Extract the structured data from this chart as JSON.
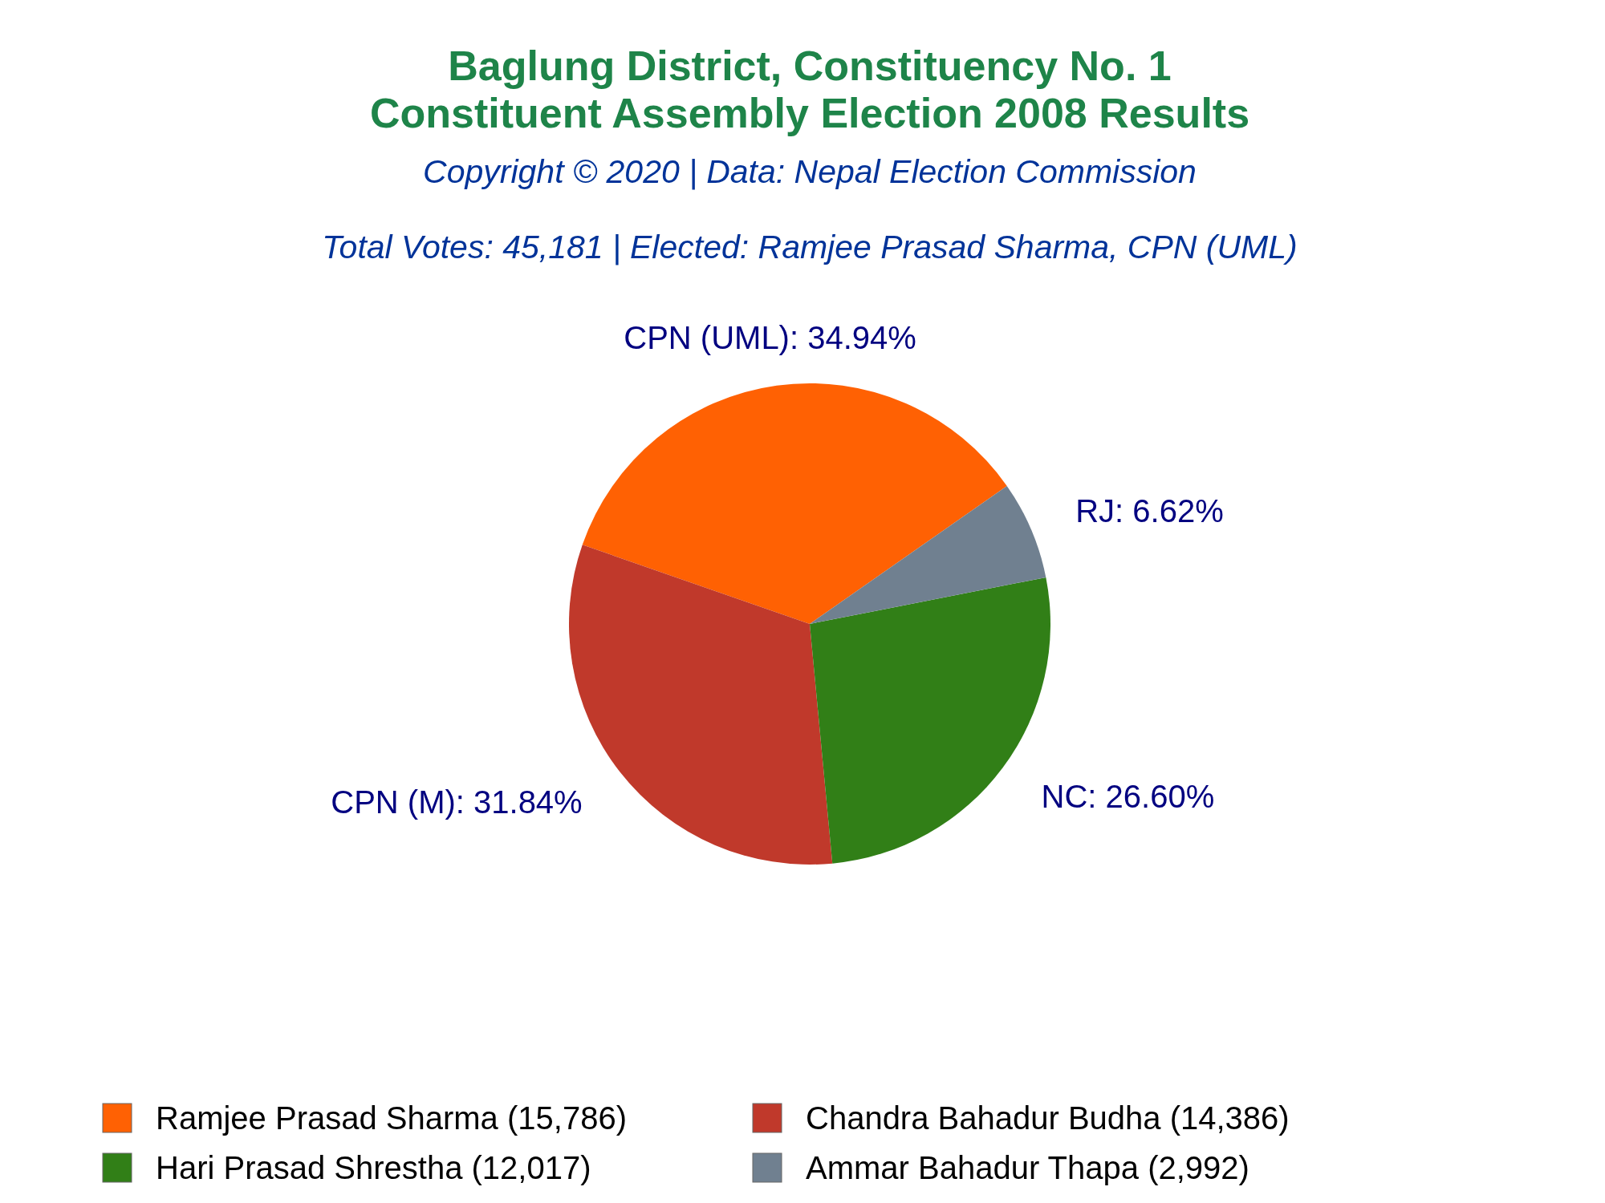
{
  "chart_data": {
    "type": "pie",
    "title": "Baglung District, Constituency No. 1\nConstituent Assembly Election 2008 Results",
    "subtitle": "Copyright © 2020 | Data: Nepal Election Commission\nTotal Votes: 45,181 | Elected: Ramjee Prasad Sharma, CPN (UML)",
    "categories": [
      "Ramjee Prasad Sharma (15,786)",
      "Chandra Bahadur Budha (14,386)",
      "Hari Prasad Shrestha (12,017)",
      "Ammar Bahadur Thapa (2,992)"
    ],
    "values": [
      34.94,
      31.84,
      26.6,
      6.62
    ],
    "colors": [
      "#ff6103",
      "#c0392b",
      "#317f17",
      "#708090"
    ],
    "value_labels": [
      "CPN (UML): 34.94%",
      "CPN (M): 31.84%",
      "NC: 26.60%",
      "RJ: 6.62%"
    ],
    "legend": "bottom"
  }
}
